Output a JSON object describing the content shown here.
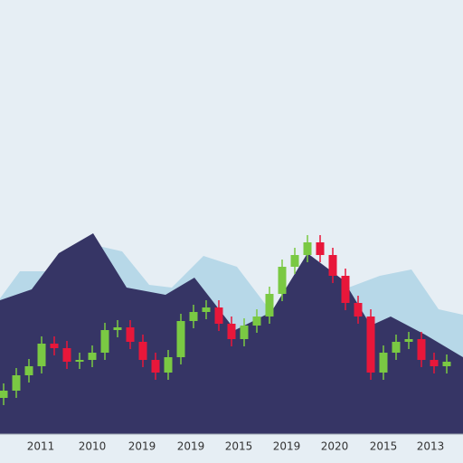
{
  "chart_data": {
    "type": "candlestick",
    "background": "#e6eef4",
    "xlim": [
      0,
      512
    ],
    "ylim": [
      0,
      480
    ],
    "xticks": [
      {
        "value": 45,
        "label": "2011"
      },
      {
        "value": 102,
        "label": "2010"
      },
      {
        "value": 157,
        "label": "2019"
      },
      {
        "value": 211,
        "label": "2019"
      },
      {
        "value": 264,
        "label": "2015"
      },
      {
        "value": 317,
        "label": "2019"
      },
      {
        "value": 370,
        "label": "2020"
      },
      {
        "value": 424,
        "label": "2015"
      },
      {
        "value": 476,
        "label": "2013"
      }
    ],
    "areas": [
      {
        "color": "#b7d8e8",
        "x": [
          0,
          22,
          50,
          100,
          135,
          165,
          190,
          225,
          262,
          300,
          380,
          420,
          455,
          485,
          512
        ],
        "values": [
          150,
          180,
          180,
          210,
          202,
          165,
          162,
          197,
          185,
          135,
          160,
          175,
          182,
          138,
          132
        ]
      },
      {
        "color": "#363565",
        "x": [
          0,
          35,
          65,
          103,
          140,
          183,
          215,
          260,
          300,
          340,
          380,
          410,
          432,
          470,
          512
        ],
        "values": [
          148,
          160,
          200,
          222,
          162,
          154,
          173,
          115,
          135,
          200,
          170,
          120,
          130,
          110,
          85
        ]
      }
    ],
    "candles": {
      "up_color": "#7ac943",
      "down_color": "#e8173a",
      "x": [
        4,
        18,
        32,
        46,
        60,
        74,
        88,
        102,
        116,
        130,
        144,
        158,
        172,
        186,
        200,
        214,
        228,
        242,
        256,
        270,
        284,
        298,
        312,
        326,
        340,
        354,
        368,
        382,
        396,
        410,
        424,
        438,
        452,
        466,
        480,
        494
      ],
      "open": [
        40,
        48,
        65,
        75,
        100,
        95,
        80,
        82,
        90,
        115,
        118,
        102,
        82,
        68,
        85,
        125,
        135,
        140,
        122,
        105,
        120,
        130,
        155,
        185,
        198,
        212,
        198,
        175,
        145,
        130,
        68,
        90,
        102,
        105,
        82,
        75
      ],
      "close": [
        48,
        65,
        75,
        100,
        95,
        80,
        82,
        90,
        115,
        118,
        102,
        82,
        68,
        85,
        125,
        135,
        140,
        122,
        105,
        120,
        130,
        155,
        185,
        198,
        212,
        198,
        175,
        145,
        130,
        68,
        90,
        102,
        105,
        82,
        75,
        80
      ],
      "high": [
        56,
        73,
        83,
        108,
        108,
        103,
        90,
        98,
        123,
        126,
        126,
        110,
        90,
        93,
        133,
        143,
        148,
        148,
        130,
        128,
        138,
        163,
        193,
        206,
        220,
        220,
        206,
        183,
        153,
        138,
        98,
        110,
        113,
        113,
        90,
        88
      ],
      "low": [
        32,
        40,
        57,
        67,
        87,
        72,
        72,
        74,
        82,
        107,
        94,
        74,
        60,
        60,
        77,
        117,
        127,
        114,
        97,
        97,
        112,
        122,
        147,
        177,
        190,
        190,
        167,
        137,
        122,
        60,
        60,
        82,
        94,
        74,
        67,
        67
      ]
    }
  }
}
